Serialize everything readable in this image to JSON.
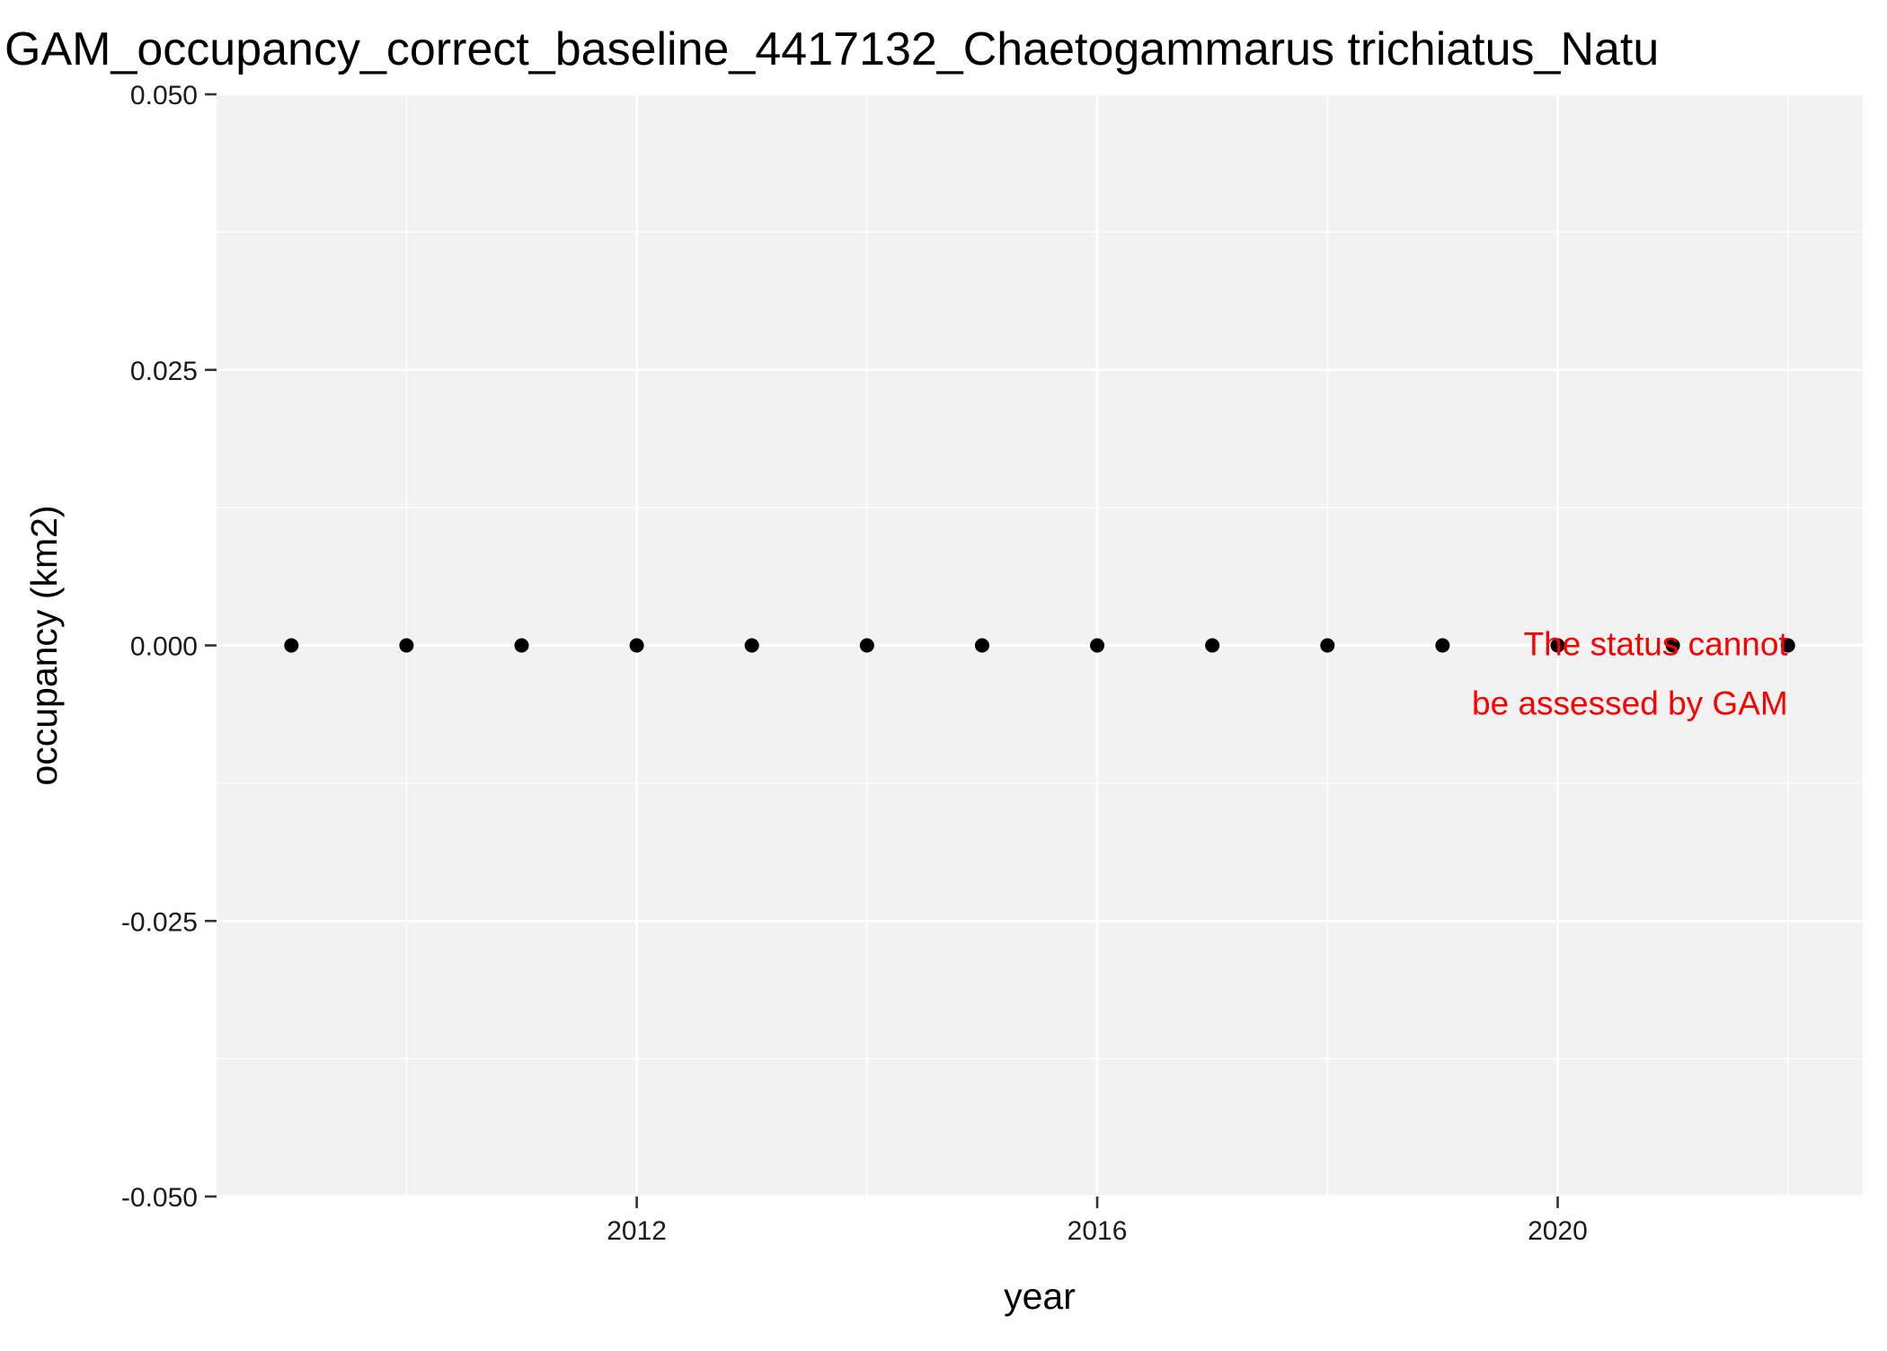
{
  "chart_data": {
    "type": "scatter",
    "title": "GAM_occupancy_correct_baseline_4417132_Chaetogammarus trichiatus_Natu",
    "xlabel": "year",
    "ylabel": "occupancy (km2)",
    "x": [
      2009,
      2010,
      2011,
      2012,
      2013,
      2014,
      2015,
      2016,
      2017,
      2018,
      2019,
      2020,
      2021,
      2022
    ],
    "y": [
      0,
      0,
      0,
      0,
      0,
      0,
      0,
      0,
      0,
      0,
      0,
      0,
      0,
      0
    ],
    "xlim": [
      2008.35,
      2022.65
    ],
    "ylim": [
      -0.05,
      0.05
    ],
    "x_ticks": [
      2012,
      2016,
      2020
    ],
    "x_tick_labels": [
      "2012",
      "2016",
      "2020"
    ],
    "x_minor_ticks": [
      2010,
      2014,
      2018,
      2022
    ],
    "y_ticks": [
      0.05,
      0.025,
      0,
      -0.025,
      -0.05
    ],
    "y_tick_labels": [
      "0.050",
      "0.025",
      "0.000",
      "-0.025",
      "-0.050"
    ],
    "y_minor_ticks": [
      0.0375,
      0.0125,
      -0.0125,
      -0.0375
    ],
    "annotation": {
      "lines": [
        "The status cannot",
        "be assessed by GAM"
      ],
      "x": 2022,
      "y": 0,
      "color": "#ff0000"
    },
    "grid": true,
    "legend": "none",
    "colors": {
      "panel_background": "#f2f2f2",
      "grid_major": "#ffffff",
      "grid_minor": "#ffffff",
      "points": "#000000",
      "annotation": "#ff0000"
    }
  }
}
